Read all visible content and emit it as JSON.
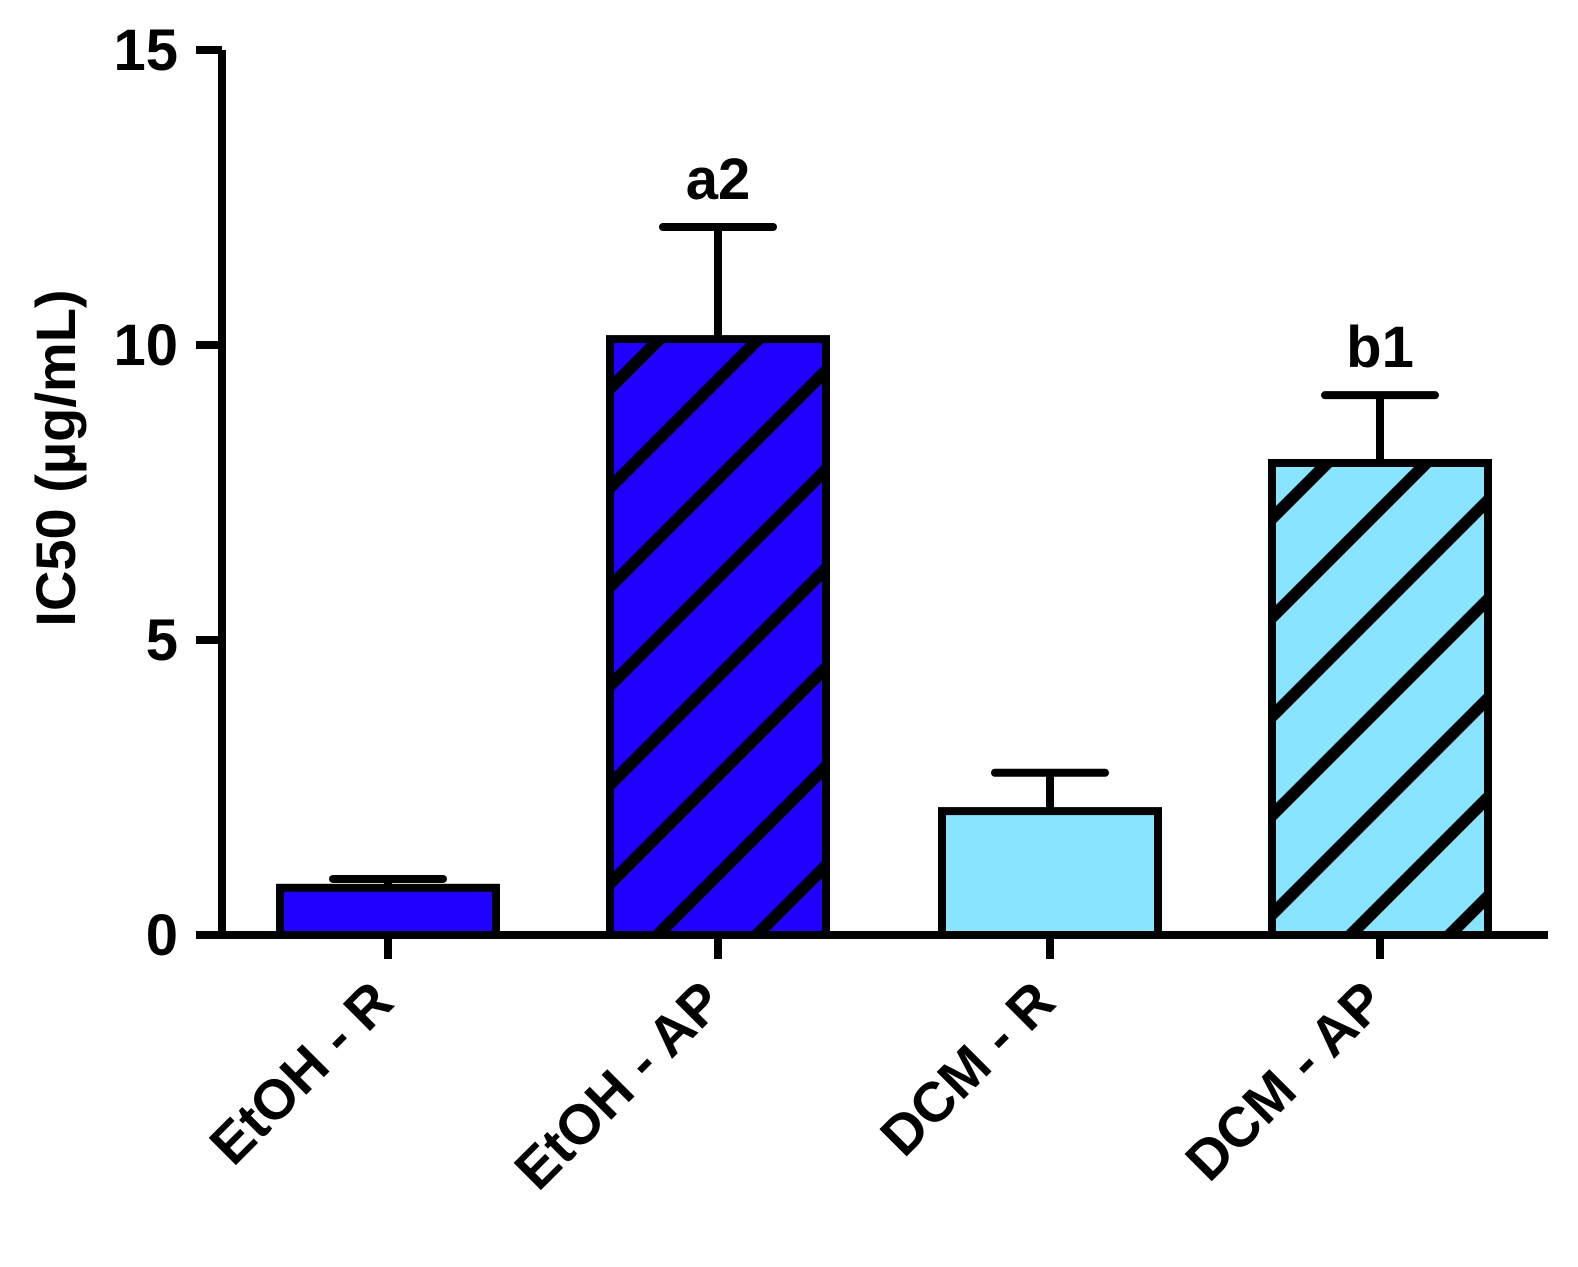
{
  "chart_data": {
    "type": "bar",
    "categories": [
      "EtOH - R",
      "EtOH - AP",
      "DCM - R",
      "DCM - AP"
    ],
    "values": [
      0.8,
      10.1,
      2.1,
      8.0
    ],
    "error_upper": [
      0.95,
      12.0,
      2.75,
      9.15
    ],
    "annotations": [
      "",
      "a2",
      "",
      "b1"
    ],
    "colors": [
      "#2000FF",
      "#2000FF",
      "#88E4FF",
      "#88E4FF"
    ],
    "hatched": [
      false,
      true,
      false,
      true
    ],
    "ylabel": "IC50 (µg/mL)",
    "xlabel": "",
    "title": "",
    "ylim": [
      0,
      15
    ],
    "yticks": [
      0,
      5,
      10,
      15
    ],
    "grid": false,
    "legend": "none"
  }
}
